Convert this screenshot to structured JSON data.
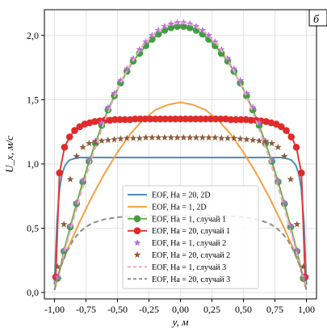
{
  "chart_data": {
    "type": "line",
    "panel_label": "б",
    "xlabel": "y, м",
    "ylabel": "U_x, м/с",
    "xlim": [
      -1.08,
      1.08
    ],
    "ylim": [
      -0.05,
      2.2
    ],
    "xticks": [
      -1.0,
      -0.75,
      -0.5,
      -0.25,
      0.0,
      0.25,
      0.5,
      0.75,
      1.0
    ],
    "xtick_labels": [
      "-1,00",
      "-0,75",
      "-0,50",
      "-0,25",
      "0,00",
      "0,25",
      "0,50",
      "0,75",
      "1,00"
    ],
    "yticks": [
      0.0,
      0.5,
      1.0,
      1.5,
      2.0
    ],
    "ytick_labels": [
      "0,0",
      "0,5",
      "1,0",
      "1,5",
      "2,0"
    ],
    "legend_position": "lower-center",
    "series": [
      {
        "name": "EOF, Ha = 20, 2D",
        "style": "line",
        "color": "#4a90b8",
        "dash": "",
        "width": 2,
        "x": [
          -1.0,
          -0.98,
          -0.96,
          -0.94,
          -0.92,
          -0.9,
          -0.88,
          -0.85,
          -0.8,
          -0.5,
          0.0,
          0.5,
          0.8,
          0.85,
          0.88,
          0.9,
          0.92,
          0.94,
          0.96,
          0.98,
          1.0
        ],
        "y": [
          0.06,
          0.55,
          0.8,
          0.92,
          0.98,
          1.01,
          1.03,
          1.04,
          1.05,
          1.05,
          1.05,
          1.05,
          1.05,
          1.04,
          1.03,
          1.01,
          0.98,
          0.92,
          0.8,
          0.55,
          0.06
        ]
      },
      {
        "name": "EOF, Ha = 1, 2D",
        "style": "line",
        "color": "#f5a142",
        "dash": "",
        "width": 2,
        "x": [
          -1.0,
          -0.95,
          -0.9,
          -0.8,
          -0.7,
          -0.6,
          -0.5,
          -0.4,
          -0.3,
          -0.2,
          -0.1,
          0.0,
          0.1,
          0.2,
          0.3,
          0.4,
          0.5,
          0.6,
          0.7,
          0.8,
          0.9,
          0.95,
          1.0
        ],
        "y": [
          0.02,
          0.2,
          0.33,
          0.55,
          0.75,
          0.93,
          1.09,
          1.23,
          1.34,
          1.42,
          1.46,
          1.48,
          1.46,
          1.42,
          1.34,
          1.23,
          1.09,
          0.93,
          0.75,
          0.55,
          0.33,
          0.2,
          0.02
        ]
      },
      {
        "name": "EOF, Ha = 1, случай 1",
        "style": "line-marker",
        "color": "#6ab04c",
        "marker_color": "#3f9f3f",
        "marker": "circle",
        "dash": "",
        "width": 2,
        "x": [
          -0.975,
          -0.925,
          -0.875,
          -0.825,
          -0.775,
          -0.725,
          -0.675,
          -0.625,
          -0.575,
          -0.525,
          -0.475,
          -0.425,
          -0.375,
          -0.325,
          -0.275,
          -0.225,
          -0.175,
          -0.125,
          -0.075,
          -0.025,
          0.025,
          0.075,
          0.125,
          0.175,
          0.225,
          0.275,
          0.325,
          0.375,
          0.425,
          0.475,
          0.525,
          0.575,
          0.625,
          0.675,
          0.725,
          0.775,
          0.825,
          0.875,
          0.925,
          0.975
        ],
        "y": [
          0.11,
          0.32,
          0.51,
          0.69,
          0.86,
          1.02,
          1.16,
          1.3,
          1.42,
          1.53,
          1.63,
          1.72,
          1.8,
          1.86,
          1.92,
          1.97,
          2.01,
          2.04,
          2.06,
          2.07,
          2.07,
          2.06,
          2.04,
          2.01,
          1.97,
          1.92,
          1.86,
          1.8,
          1.72,
          1.63,
          1.53,
          1.42,
          1.3,
          1.16,
          1.02,
          0.86,
          0.69,
          0.51,
          0.32,
          0.11
        ]
      },
      {
        "name": "EOF, Ha = 20, случай 1",
        "style": "line-marker",
        "color": "#e03a3a",
        "marker_color": "#e02b2b",
        "marker": "circle",
        "dash": "",
        "width": 2,
        "x": [
          -0.99,
          -0.96,
          -0.92,
          -0.88,
          -0.84,
          -0.8,
          -0.76,
          -0.72,
          -0.68,
          -0.64,
          -0.6,
          -0.56,
          -0.52,
          -0.48,
          -0.44,
          -0.4,
          -0.36,
          -0.32,
          -0.28,
          -0.24,
          -0.2,
          -0.16,
          -0.12,
          -0.08,
          -0.04,
          0.0,
          0.04,
          0.08,
          0.12,
          0.16,
          0.2,
          0.24,
          0.28,
          0.32,
          0.36,
          0.4,
          0.44,
          0.48,
          0.52,
          0.56,
          0.6,
          0.64,
          0.68,
          0.72,
          0.76,
          0.8,
          0.84,
          0.88,
          0.92,
          0.96,
          0.99
        ],
        "y": [
          0.12,
          0.93,
          1.13,
          1.21,
          1.26,
          1.29,
          1.31,
          1.32,
          1.33,
          1.335,
          1.34,
          1.34,
          1.345,
          1.345,
          1.345,
          1.345,
          1.35,
          1.35,
          1.35,
          1.35,
          1.35,
          1.35,
          1.35,
          1.35,
          1.35,
          1.35,
          1.35,
          1.35,
          1.35,
          1.35,
          1.35,
          1.35,
          1.35,
          1.35,
          1.35,
          1.345,
          1.345,
          1.345,
          1.345,
          1.34,
          1.34,
          1.335,
          1.33,
          1.32,
          1.31,
          1.29,
          1.26,
          1.21,
          1.13,
          0.93,
          0.12
        ]
      },
      {
        "name": "EOF, Ha = 1, случай 2",
        "style": "marker",
        "color": "#b86fd8",
        "marker": "star",
        "x": [
          -0.975,
          -0.925,
          -0.875,
          -0.825,
          -0.775,
          -0.725,
          -0.675,
          -0.625,
          -0.575,
          -0.525,
          -0.475,
          -0.425,
          -0.375,
          -0.325,
          -0.275,
          -0.225,
          -0.175,
          -0.125,
          -0.075,
          -0.025,
          0.025,
          0.075,
          0.125,
          0.175,
          0.225,
          0.275,
          0.325,
          0.375,
          0.425,
          0.475,
          0.525,
          0.575,
          0.625,
          0.675,
          0.725,
          0.775,
          0.825,
          0.875,
          0.925,
          0.975
        ],
        "y": [
          0.12,
          0.33,
          0.52,
          0.7,
          0.87,
          1.03,
          1.18,
          1.32,
          1.44,
          1.55,
          1.65,
          1.74,
          1.82,
          1.89,
          1.95,
          2.0,
          2.04,
          2.07,
          2.09,
          2.1,
          2.1,
          2.09,
          2.07,
          2.04,
          2.0,
          1.95,
          1.89,
          1.82,
          1.74,
          1.65,
          1.55,
          1.44,
          1.32,
          1.18,
          1.03,
          0.87,
          0.7,
          0.52,
          0.33,
          0.12
        ]
      },
      {
        "name": "EOF, Ha = 20, случай 2",
        "style": "marker",
        "color": "#8b5a3c",
        "marker": "star",
        "x": [
          -0.975,
          -0.925,
          -0.875,
          -0.825,
          -0.775,
          -0.725,
          -0.675,
          -0.625,
          -0.575,
          -0.525,
          -0.475,
          -0.425,
          -0.375,
          -0.325,
          -0.275,
          -0.225,
          -0.175,
          -0.125,
          -0.075,
          -0.025,
          0.025,
          0.075,
          0.125,
          0.175,
          0.225,
          0.275,
          0.325,
          0.375,
          0.425,
          0.475,
          0.525,
          0.575,
          0.625,
          0.675,
          0.725,
          0.775,
          0.825,
          0.875,
          0.925,
          0.975
        ],
        "y": [
          0.2,
          0.53,
          0.88,
          1.06,
          1.13,
          1.16,
          1.17,
          1.18,
          1.185,
          1.19,
          1.195,
          1.2,
          1.2,
          1.2,
          1.205,
          1.205,
          1.205,
          1.205,
          1.205,
          1.205,
          1.205,
          1.205,
          1.205,
          1.205,
          1.205,
          1.205,
          1.2,
          1.2,
          1.2,
          1.195,
          1.19,
          1.185,
          1.18,
          1.17,
          1.16,
          1.13,
          1.06,
          0.88,
          0.53,
          0.2
        ]
      },
      {
        "name": "EOF, Ha = 1, случай 3",
        "style": "line",
        "color": "#f4a6c0",
        "dash": "6,4",
        "width": 2,
        "x": [
          -1.0,
          -0.9,
          -0.8,
          -0.7,
          -0.6,
          -0.5,
          -0.4,
          -0.3,
          -0.2,
          -0.1,
          0.0,
          0.1,
          0.2,
          0.3,
          0.4,
          0.5,
          0.6,
          0.7,
          0.8,
          0.9,
          1.0
        ],
        "y": [
          0.02,
          0.39,
          0.74,
          1.06,
          1.34,
          1.58,
          1.77,
          1.92,
          2.02,
          2.08,
          2.1,
          2.08,
          2.02,
          1.92,
          1.77,
          1.58,
          1.34,
          1.06,
          0.74,
          0.39,
          0.02
        ]
      },
      {
        "name": "EOF, Ha = 20, случай 3",
        "style": "line",
        "color": "#8c8c8c",
        "dash": "6,4",
        "width": 2,
        "x": [
          -1.0,
          -0.95,
          -0.9,
          -0.85,
          -0.8,
          -0.75,
          -0.7,
          -0.6,
          -0.5,
          -0.3,
          0.0,
          0.3,
          0.5,
          0.6,
          0.7,
          0.75,
          0.8,
          0.85,
          0.9,
          0.95,
          1.0
        ],
        "y": [
          0.02,
          0.2,
          0.32,
          0.41,
          0.47,
          0.51,
          0.54,
          0.57,
          0.585,
          0.6,
          0.6,
          0.6,
          0.585,
          0.57,
          0.54,
          0.51,
          0.47,
          0.41,
          0.32,
          0.2,
          0.02
        ]
      }
    ]
  }
}
